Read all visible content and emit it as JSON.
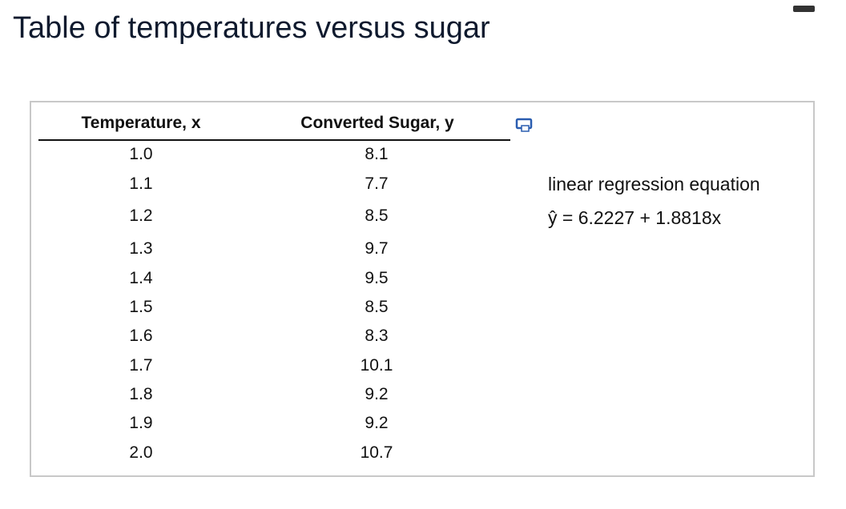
{
  "title": "Table of temperatures versus sugar",
  "table": {
    "headers": [
      "Temperature, x",
      "Converted Sugar, y"
    ],
    "rows": [
      [
        "1.0",
        "8.1"
      ],
      [
        "1.1",
        "7.7"
      ],
      [
        "1.2",
        "8.5"
      ],
      [
        "1.3",
        "9.7"
      ],
      [
        "1.4",
        "9.5"
      ],
      [
        "1.5",
        "8.5"
      ],
      [
        "1.6",
        "8.3"
      ],
      [
        "1.7",
        "10.1"
      ],
      [
        "1.8",
        "9.2"
      ],
      [
        "1.9",
        "9.2"
      ],
      [
        "2.0",
        "10.7"
      ]
    ]
  },
  "regression": {
    "label": "linear regression equation",
    "equation": "ŷ = 6.2227 + 1.8818x"
  }
}
